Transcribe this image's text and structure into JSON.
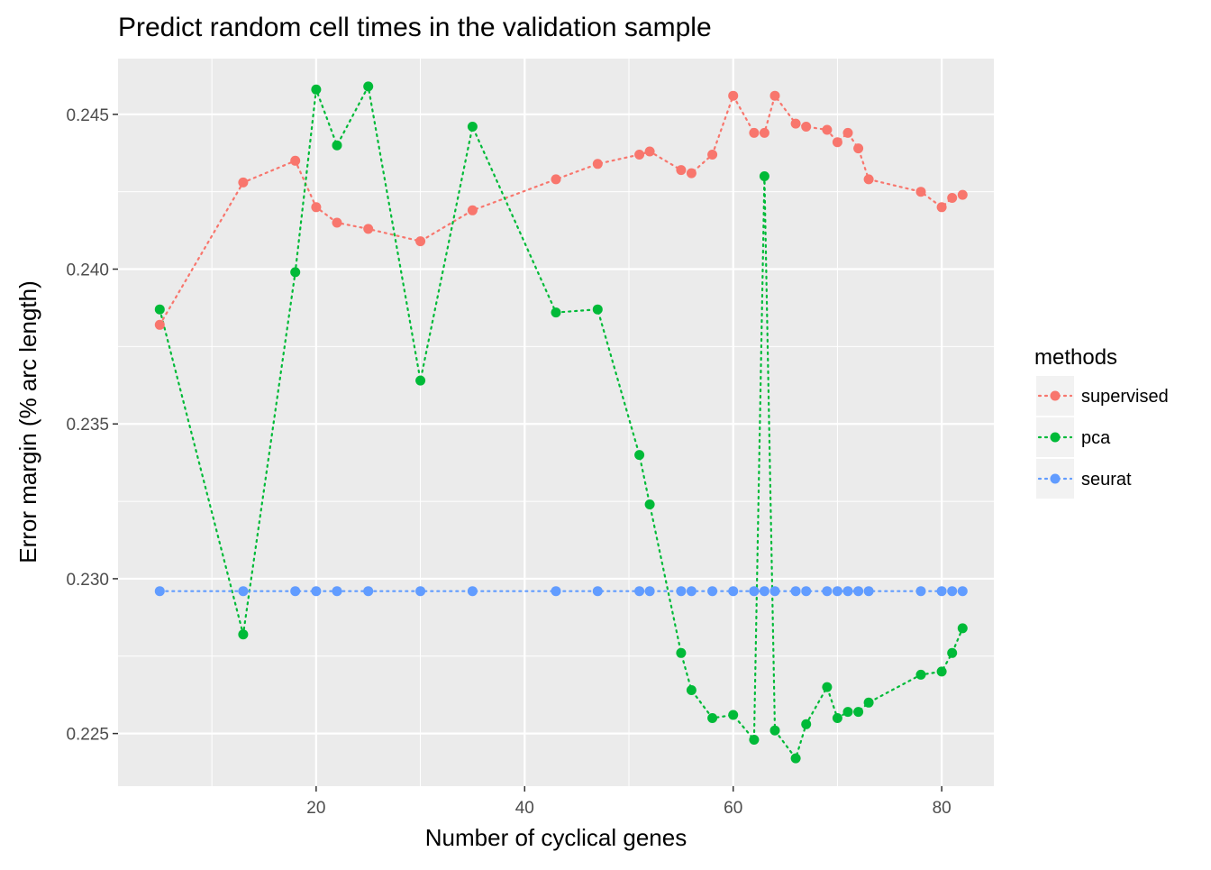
{
  "chart_data": {
    "type": "line",
    "title": "Predict random cell times in the validation sample",
    "xlabel": "Number of cyclical genes",
    "ylabel": "Error margin (% arc length)",
    "xlim": [
      1,
      85
    ],
    "ylim": [
      0.2233,
      0.2468
    ],
    "x_ticks": [
      20,
      40,
      60,
      80
    ],
    "x_tick_labels": [
      "20",
      "40",
      "60",
      "80"
    ],
    "y_ticks": [
      0.225,
      0.23,
      0.235,
      0.24,
      0.245
    ],
    "y_tick_labels": [
      "0.225",
      "0.230",
      "0.235",
      "0.240",
      "0.245"
    ],
    "grid": true,
    "legend": {
      "title": "methods",
      "position": "right"
    },
    "line_style": "dotted",
    "series": [
      {
        "name": "supervised",
        "color": "#F8766D",
        "points": [
          [
            5,
            0.2382
          ],
          [
            13,
            0.2428
          ],
          [
            18,
            0.2435
          ],
          [
            20,
            0.242
          ],
          [
            22,
            0.2415
          ],
          [
            25,
            0.2413
          ],
          [
            30,
            0.2409
          ],
          [
            35,
            0.2419
          ],
          [
            43,
            0.2429
          ],
          [
            47,
            0.2434
          ],
          [
            51,
            0.2437
          ],
          [
            52,
            0.2438
          ],
          [
            55,
            0.2432
          ],
          [
            56,
            0.2431
          ],
          [
            58,
            0.2437
          ],
          [
            60,
            0.2456
          ],
          [
            62,
            0.2444
          ],
          [
            63,
            0.2444
          ],
          [
            64,
            0.2456
          ],
          [
            66,
            0.2447
          ],
          [
            67,
            0.2446
          ],
          [
            69,
            0.2445
          ],
          [
            70,
            0.2441
          ],
          [
            71,
            0.2444
          ],
          [
            72,
            0.2439
          ],
          [
            73,
            0.2429
          ],
          [
            78,
            0.2425
          ],
          [
            80,
            0.242
          ],
          [
            81,
            0.2423
          ],
          [
            82,
            0.2424
          ]
        ]
      },
      {
        "name": "pca",
        "color": "#00BA38",
        "points": [
          [
            5,
            0.2387
          ],
          [
            13,
            0.2282
          ],
          [
            18,
            0.2399
          ],
          [
            20,
            0.2458
          ],
          [
            22,
            0.244
          ],
          [
            25,
            0.2459
          ],
          [
            30,
            0.2364
          ],
          [
            35,
            0.2446
          ],
          [
            43,
            0.2386
          ],
          [
            47,
            0.2387
          ],
          [
            51,
            0.234
          ],
          [
            52,
            0.2324
          ],
          [
            55,
            0.2276
          ],
          [
            56,
            0.2264
          ],
          [
            58,
            0.2255
          ],
          [
            60,
            0.2256
          ],
          [
            62,
            0.2248
          ],
          [
            63,
            0.243
          ],
          [
            64,
            0.2251
          ],
          [
            66,
            0.2242
          ],
          [
            67,
            0.2253
          ],
          [
            69,
            0.2265
          ],
          [
            70,
            0.2255
          ],
          [
            71,
            0.2257
          ],
          [
            72,
            0.2257
          ],
          [
            73,
            0.226
          ],
          [
            78,
            0.2269
          ],
          [
            80,
            0.227
          ],
          [
            81,
            0.2276
          ],
          [
            82,
            0.2284
          ]
        ]
      },
      {
        "name": "seurat",
        "color": "#619CFF",
        "points": [
          [
            5,
            0.2296
          ],
          [
            13,
            0.2296
          ],
          [
            18,
            0.2296
          ],
          [
            20,
            0.2296
          ],
          [
            22,
            0.2296
          ],
          [
            25,
            0.2296
          ],
          [
            30,
            0.2296
          ],
          [
            35,
            0.2296
          ],
          [
            43,
            0.2296
          ],
          [
            47,
            0.2296
          ],
          [
            51,
            0.2296
          ],
          [
            52,
            0.2296
          ],
          [
            55,
            0.2296
          ],
          [
            56,
            0.2296
          ],
          [
            58,
            0.2296
          ],
          [
            60,
            0.2296
          ],
          [
            62,
            0.2296
          ],
          [
            63,
            0.2296
          ],
          [
            64,
            0.2296
          ],
          [
            66,
            0.2296
          ],
          [
            67,
            0.2296
          ],
          [
            69,
            0.2296
          ],
          [
            70,
            0.2296
          ],
          [
            71,
            0.2296
          ],
          [
            72,
            0.2296
          ],
          [
            73,
            0.2296
          ],
          [
            78,
            0.2296
          ],
          [
            80,
            0.2296
          ],
          [
            81,
            0.2296
          ],
          [
            82,
            0.2296
          ]
        ]
      }
    ]
  }
}
